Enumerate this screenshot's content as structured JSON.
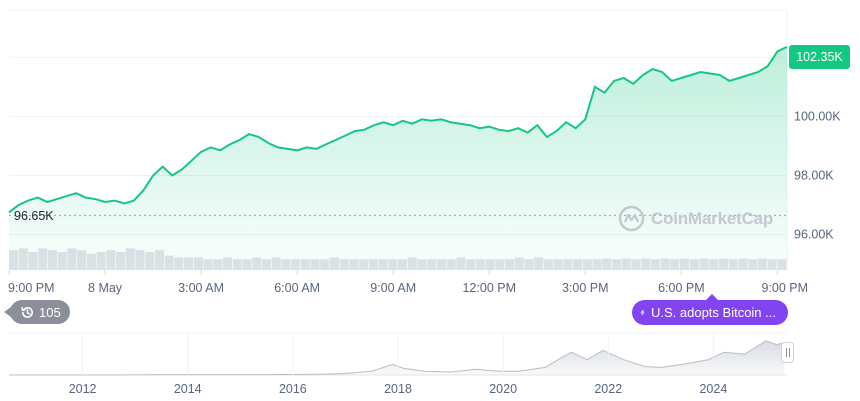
{
  "chart_data": [
    {
      "type": "area",
      "title": "",
      "xlabel": "",
      "ylabel": "",
      "x_tick_labels": [
        "9:00 PM",
        "8 May",
        "3:00 AM",
        "6:00 AM",
        "9:00 AM",
        "12:00 PM",
        "3:00 PM",
        "6:00 PM",
        "9:00 PM"
      ],
      "y_tick_labels": [
        "96.00K",
        "98.00K",
        "100.00K"
      ],
      "ylim": [
        94.8,
        103.6
      ],
      "grid": true,
      "series": [
        {
          "color": "#16c784",
          "x_hours": [
            0,
            0.3,
            0.6,
            0.9,
            1.2,
            1.5,
            1.8,
            2.1,
            2.4,
            2.7,
            3.0,
            3.3,
            3.6,
            3.9,
            4.2,
            4.5,
            4.8,
            5.1,
            5.4,
            5.7,
            6.0,
            6.3,
            6.6,
            6.9,
            7.2,
            7.5,
            7.8,
            8.1,
            8.4,
            8.7,
            9.0,
            9.3,
            9.6,
            9.9,
            10.2,
            10.5,
            10.8,
            11.1,
            11.4,
            11.7,
            12.0,
            12.3,
            12.6,
            12.9,
            13.2,
            13.5,
            13.8,
            14.1,
            14.4,
            14.7,
            15.0,
            15.3,
            15.6,
            15.9,
            16.2,
            16.5,
            16.8,
            17.1,
            17.4,
            17.7,
            18.0,
            18.3,
            18.6,
            18.9,
            19.2,
            19.5,
            19.8,
            20.1,
            20.4,
            20.7,
            21.0,
            21.3,
            21.6,
            21.9,
            22.2,
            22.5,
            22.8,
            23.1,
            23.4,
            23.7,
            24.0,
            24.3
          ],
          "values_k": [
            96.75,
            97.0,
            97.15,
            97.25,
            97.1,
            97.2,
            97.3,
            97.4,
            97.25,
            97.2,
            97.1,
            97.15,
            97.05,
            97.15,
            97.5,
            98.0,
            98.3,
            98.0,
            98.2,
            98.5,
            98.8,
            98.95,
            98.85,
            99.05,
            99.2,
            99.4,
            99.3,
            99.1,
            98.95,
            98.9,
            98.85,
            98.95,
            98.9,
            99.05,
            99.2,
            99.35,
            99.5,
            99.55,
            99.7,
            99.8,
            99.7,
            99.85,
            99.75,
            99.9,
            99.85,
            99.9,
            99.8,
            99.75,
            99.7,
            99.6,
            99.65,
            99.55,
            99.5,
            99.6,
            99.45,
            99.7,
            99.3,
            99.5,
            99.8,
            99.6,
            99.9,
            101.0,
            100.8,
            101.2,
            101.3,
            101.1,
            101.4,
            101.6,
            101.5,
            101.2,
            101.3,
            101.4,
            101.5,
            101.45,
            101.4,
            101.2,
            101.3,
            101.4,
            101.5,
            101.7,
            102.2,
            102.35
          ]
        }
      ],
      "start_value_label": "96.65K",
      "start_value_k": 96.65,
      "last_price_label": "102.35K",
      "last_price_k": 102.35,
      "volume_bars_relative": [
        0.55,
        0.6,
        0.5,
        0.6,
        0.55,
        0.5,
        0.6,
        0.55,
        0.45,
        0.5,
        0.55,
        0.5,
        0.6,
        0.55,
        0.5,
        0.55,
        0.4,
        0.35,
        0.35,
        0.35,
        0.3,
        0.3,
        0.35,
        0.3,
        0.3,
        0.35,
        0.3,
        0.35,
        0.3,
        0.3,
        0.3,
        0.3,
        0.3,
        0.35,
        0.3,
        0.3,
        0.3,
        0.3,
        0.3,
        0.3,
        0.3,
        0.35,
        0.3,
        0.3,
        0.3,
        0.3,
        0.35,
        0.3,
        0.3,
        0.3,
        0.3,
        0.3,
        0.35,
        0.3,
        0.35,
        0.3,
        0.3,
        0.3,
        0.3,
        0.3,
        0.3,
        0.32,
        0.3,
        0.32,
        0.3,
        0.32,
        0.3,
        0.32,
        0.3,
        0.32,
        0.3,
        0.32,
        0.3,
        0.32,
        0.3,
        0.32,
        0.3,
        0.32,
        0.3,
        0.3
      ]
    },
    {
      "type": "area",
      "title": "",
      "xlabel": "",
      "ylabel": "",
      "x_tick_labels": [
        "2012",
        "2014",
        "2016",
        "2018",
        "2020",
        "2022",
        "2024"
      ],
      "x_years": [
        2010.6,
        2011.5,
        2012.5,
        2013.5,
        2014.5,
        2015.5,
        2016.5,
        2017.0,
        2017.5,
        2017.9,
        2018.1,
        2018.5,
        2019.0,
        2019.5,
        2019.9,
        2020.3,
        2020.8,
        2021.1,
        2021.3,
        2021.6,
        2021.9,
        2022.3,
        2022.7,
        2023.0,
        2023.5,
        2023.9,
        2024.2,
        2024.6,
        2025.0,
        2025.2,
        2025.35
      ],
      "values_rel": [
        0.0,
        0.0,
        0.0,
        0.01,
        0.01,
        0.01,
        0.02,
        0.04,
        0.1,
        0.28,
        0.18,
        0.1,
        0.08,
        0.15,
        0.1,
        0.1,
        0.2,
        0.45,
        0.6,
        0.4,
        0.65,
        0.4,
        0.22,
        0.2,
        0.3,
        0.4,
        0.6,
        0.55,
        0.9,
        0.8,
        0.85
      ]
    }
  ],
  "history_badge": {
    "count": "105",
    "icon": "history-icon"
  },
  "event_badge": {
    "label": "U.S. adopts Bitcoin ...",
    "icon": "lightning-icon"
  },
  "watermark": {
    "text": "CoinMarketCap",
    "icon": "coinmarketcap-logo-icon"
  },
  "colors": {
    "accent": "#16c784",
    "event": "#8244f0",
    "badge": "#8a8f99",
    "grid": "#eff2f5",
    "axis_text": "#58667e"
  }
}
